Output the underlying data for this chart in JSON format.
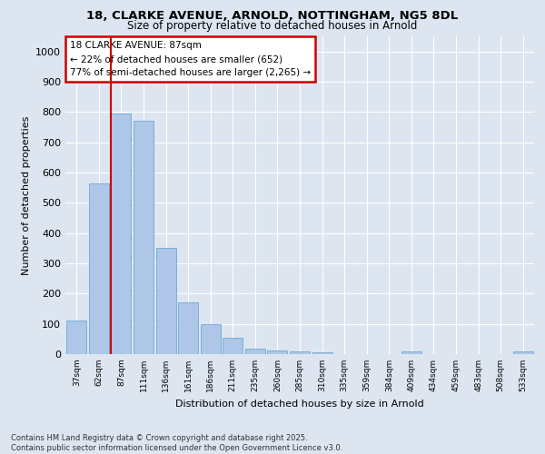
{
  "title_line1": "18, CLARKE AVENUE, ARNOLD, NOTTINGHAM, NG5 8DL",
  "title_line2": "Size of property relative to detached houses in Arnold",
  "xlabel": "Distribution of detached houses by size in Arnold",
  "ylabel": "Number of detached properties",
  "categories": [
    "37sqm",
    "62sqm",
    "87sqm",
    "111sqm",
    "136sqm",
    "161sqm",
    "186sqm",
    "211sqm",
    "235sqm",
    "260sqm",
    "285sqm",
    "310sqm",
    "335sqm",
    "359sqm",
    "384sqm",
    "409sqm",
    "434sqm",
    "459sqm",
    "483sqm",
    "508sqm",
    "533sqm"
  ],
  "values": [
    110,
    565,
    795,
    770,
    350,
    170,
    100,
    55,
    18,
    13,
    10,
    5,
    0,
    0,
    0,
    8,
    0,
    0,
    0,
    0,
    8
  ],
  "bar_color": "#aec6e8",
  "bar_edge_color": "#6aaad4",
  "highlight_index": 2,
  "highlight_line_color": "#cc0000",
  "annotation_box_text": "18 CLARKE AVENUE: 87sqm\n← 22% of detached houses are smaller (652)\n77% of semi-detached houses are larger (2,265) →",
  "annotation_box_color": "#cc0000",
  "annotation_box_bg": "#ffffff",
  "ylim": [
    0,
    1050
  ],
  "yticks": [
    0,
    100,
    200,
    300,
    400,
    500,
    600,
    700,
    800,
    900,
    1000
  ],
  "background_color": "#dde5f0",
  "grid_color": "#ffffff",
  "footer_line1": "Contains HM Land Registry data © Crown copyright and database right 2025.",
  "footer_line2": "Contains public sector information licensed under the Open Government Licence v3.0.",
  "fig_bg": "#dde5f0"
}
